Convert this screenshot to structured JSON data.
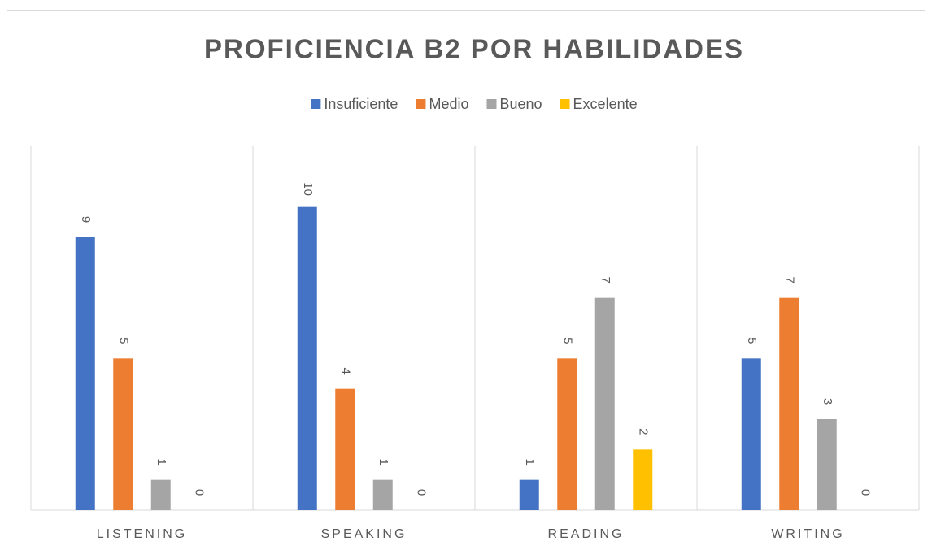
{
  "chart_data": {
    "type": "bar",
    "title": "PROFICIENCIA B2 POR HABILIDADES",
    "categories": [
      "LISTENING",
      "SPEAKING",
      "READING",
      "WRITING"
    ],
    "series": [
      {
        "name": "Insuficiente",
        "color": "#4472c4",
        "values": [
          9,
          10,
          1,
          5
        ]
      },
      {
        "name": "Medio",
        "color": "#ed7d31",
        "values": [
          5,
          4,
          5,
          7
        ]
      },
      {
        "name": "Bueno",
        "color": "#a5a5a5",
        "values": [
          1,
          1,
          7,
          3
        ]
      },
      {
        "name": "Excelente",
        "color": "#ffc000",
        "values": [
          0,
          0,
          2,
          0
        ]
      }
    ],
    "ylim": [
      0,
      12
    ],
    "legend": "top"
  }
}
